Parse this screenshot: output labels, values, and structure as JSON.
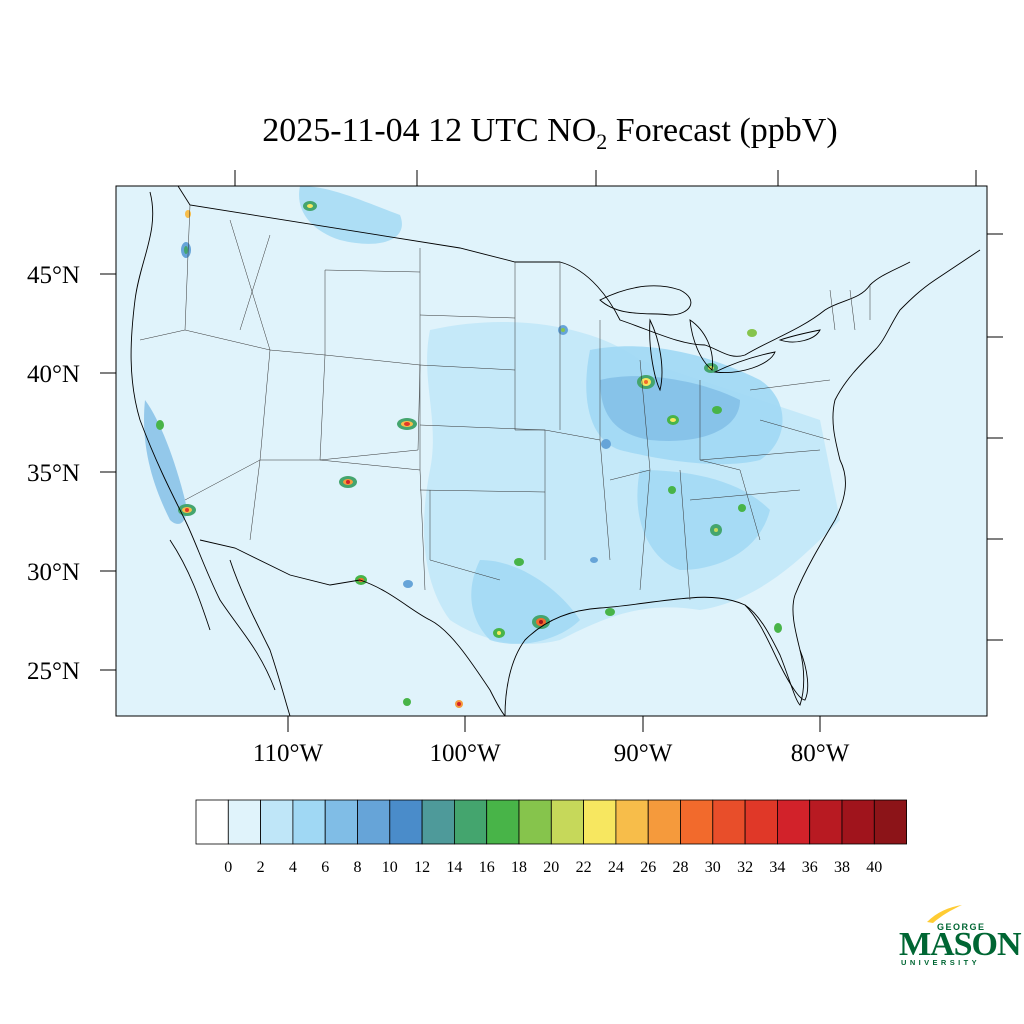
{
  "title": {
    "main": "2025-11-04 12 UTC NO",
    "sub": "2",
    "rest": " Forecast (ppbV)"
  },
  "map": {
    "lat_labels": [
      "45°N",
      "40°N",
      "35°N",
      "30°N",
      "25°N"
    ],
    "lon_labels": [
      "110°W",
      "100°W",
      "90°W",
      "80°W"
    ],
    "ocean_color": "#e0f3fb",
    "land_color": "#e0f3fb"
  },
  "colorbar": {
    "tick_labels": [
      "0",
      "2",
      "4",
      "6",
      "8",
      "10",
      "12",
      "14",
      "16",
      "18",
      "20",
      "22",
      "24",
      "26",
      "28",
      "30",
      "32",
      "34",
      "36",
      "38",
      "40"
    ],
    "colors": [
      "#ffffff",
      "#e0f3fb",
      "#bfe6f8",
      "#a0d8f4",
      "#80bde6",
      "#66a4d8",
      "#4a8cca",
      "#4e9a9a",
      "#44a56e",
      "#48b448",
      "#86c44c",
      "#c6d85a",
      "#f7e760",
      "#f7bd4a",
      "#f59a3c",
      "#f26a2c",
      "#e84e2a",
      "#e03828",
      "#d2222a",
      "#b81a22",
      "#a0141c",
      "#8c1418"
    ]
  },
  "logo": {
    "top": "GEORGE",
    "main": "MASON",
    "bottom": "UNIVERSITY"
  }
}
